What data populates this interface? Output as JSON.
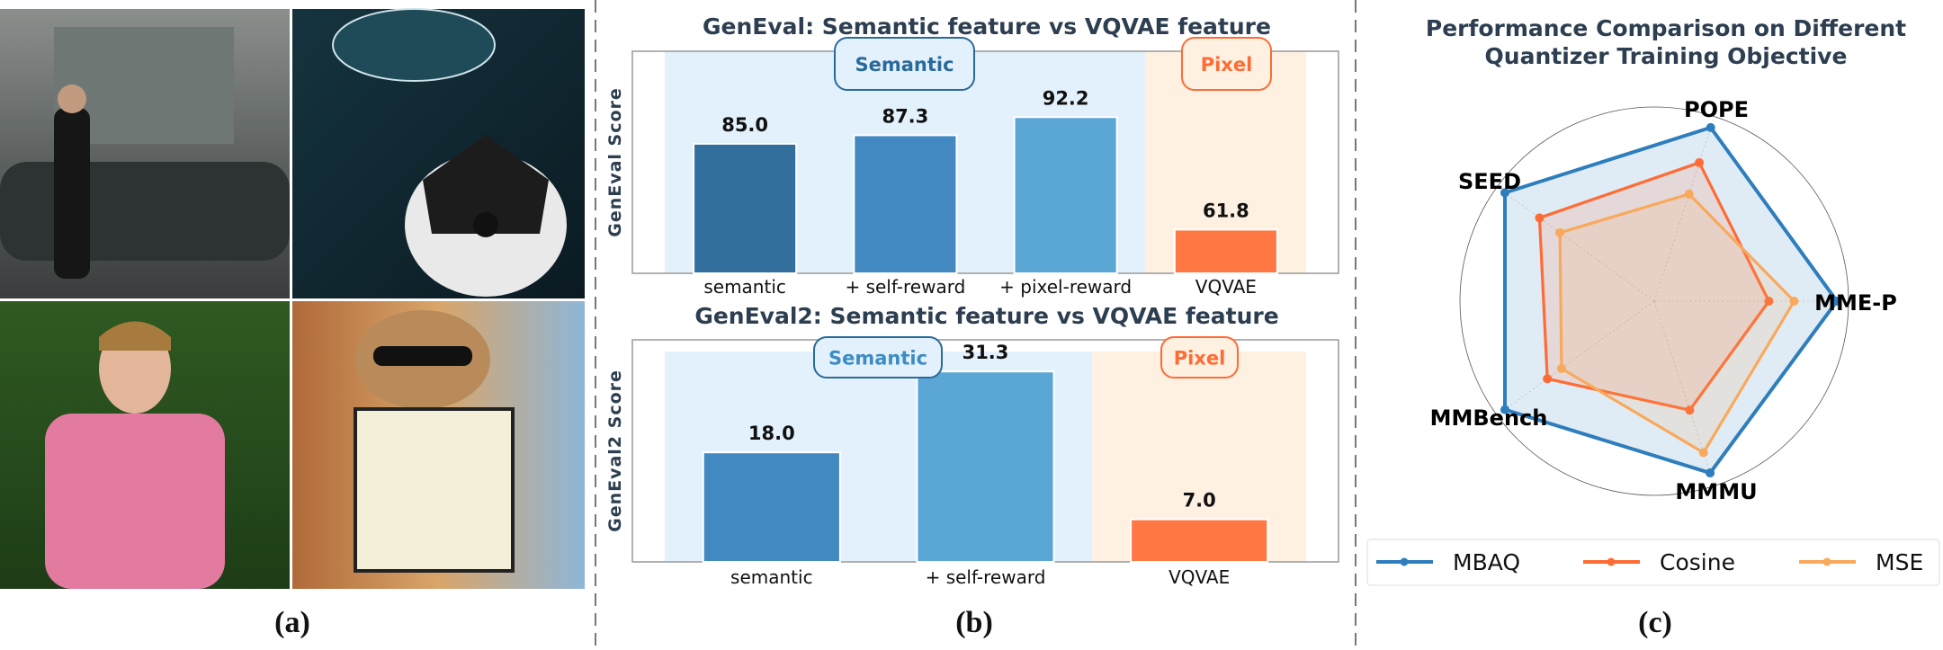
{
  "panels": {
    "a": {
      "caption": "(a)"
    },
    "b": {
      "caption": "(b)"
    },
    "c": {
      "caption": "(c)"
    }
  },
  "colors": {
    "title": "#2c3e50",
    "semantic_band": "#e3f1fc",
    "pixel_band": "#fef1e1",
    "semantic_label": "#2a6a9a",
    "pixel_label": "#ff6b35",
    "bar_semantic": [
      "#336f9c",
      "#4189c0",
      "#5aa7d6"
    ],
    "bar_pixel": "#ff7843"
  },
  "chart_data": [
    {
      "type": "bar",
      "title": "GenEval: Semantic feature vs VQVAE feature",
      "ylabel": "GenEval Score",
      "categories": [
        "semantic",
        "+ self-reward",
        "+ pixel-reward",
        "VQVAE"
      ],
      "values": [
        85.0,
        87.3,
        92.2,
        61.8
      ],
      "value_labels": [
        "85.0",
        "87.3",
        "92.2",
        "61.8"
      ],
      "groups": {
        "semantic": "Semantic",
        "pixel": "Pixel"
      },
      "ylim": [
        50,
        110
      ],
      "grid": false
    },
    {
      "type": "bar",
      "title": "GenEval2: Semantic feature vs VQVAE feature",
      "ylabel": "GenEval2 Score",
      "categories": [
        "semantic",
        "+ self-reward",
        "VQVAE"
      ],
      "values": [
        18.0,
        31.3,
        7.0
      ],
      "value_labels": [
        "18.0",
        "31.3",
        "7.0"
      ],
      "groups": {
        "semantic": "Semantic",
        "pixel": "Pixel"
      },
      "ylim": [
        0,
        36.5
      ],
      "grid": false
    },
    {
      "type": "radar",
      "title_lines": [
        "Performance Comparison on Different",
        "Quantizer Training Objective"
      ],
      "axes": [
        "MME-P",
        "POPE",
        "SEED",
        "MMBench",
        "MMMU"
      ],
      "rlim": [
        0,
        1
      ],
      "legend_position": "bottom",
      "series": [
        {
          "name": "MBAQ",
          "color": "#2e7dbd",
          "values": [
            0.94,
            0.94,
            0.95,
            0.95,
            0.93
          ]
        },
        {
          "name": "Cosine",
          "color": "#ff6b35",
          "values": [
            0.59,
            0.75,
            0.73,
            0.68,
            0.59
          ]
        },
        {
          "name": "MSE",
          "color": "#f9a95c",
          "values": [
            0.72,
            0.58,
            0.6,
            0.59,
            0.82
          ]
        }
      ]
    }
  ]
}
